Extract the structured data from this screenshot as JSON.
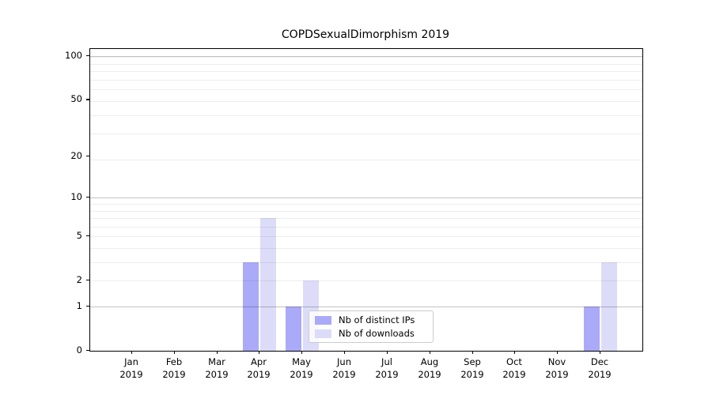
{
  "chart_data": {
    "type": "bar",
    "title": "COPDSexualDimorphism 2019",
    "categories": [
      {
        "month": "Jan",
        "year": "2019"
      },
      {
        "month": "Feb",
        "year": "2019"
      },
      {
        "month": "Mar",
        "year": "2019"
      },
      {
        "month": "Apr",
        "year": "2019"
      },
      {
        "month": "May",
        "year": "2019"
      },
      {
        "month": "Jun",
        "year": "2019"
      },
      {
        "month": "Jul",
        "year": "2019"
      },
      {
        "month": "Aug",
        "year": "2019"
      },
      {
        "month": "Sep",
        "year": "2019"
      },
      {
        "month": "Oct",
        "year": "2019"
      },
      {
        "month": "Nov",
        "year": "2019"
      },
      {
        "month": "Dec",
        "year": "2019"
      }
    ],
    "series": [
      {
        "name": "Nb of distinct IPs",
        "color": "#aaaaf8",
        "values": [
          0,
          0,
          0,
          3,
          1,
          0,
          0,
          0,
          0,
          0,
          0,
          1
        ]
      },
      {
        "name": "Nb of downloads",
        "color": "#dcdcf8",
        "values": [
          0,
          0,
          0,
          7,
          2,
          0,
          0,
          0,
          0,
          0,
          0,
          3
        ]
      }
    ],
    "yticks": [
      0,
      1,
      2,
      5,
      10,
      20,
      50,
      100
    ],
    "ylabel": "",
    "xlabel": "",
    "scale": "log1p",
    "ylim": [
      0,
      112
    ],
    "grid": true,
    "legend_position": "lower center"
  }
}
